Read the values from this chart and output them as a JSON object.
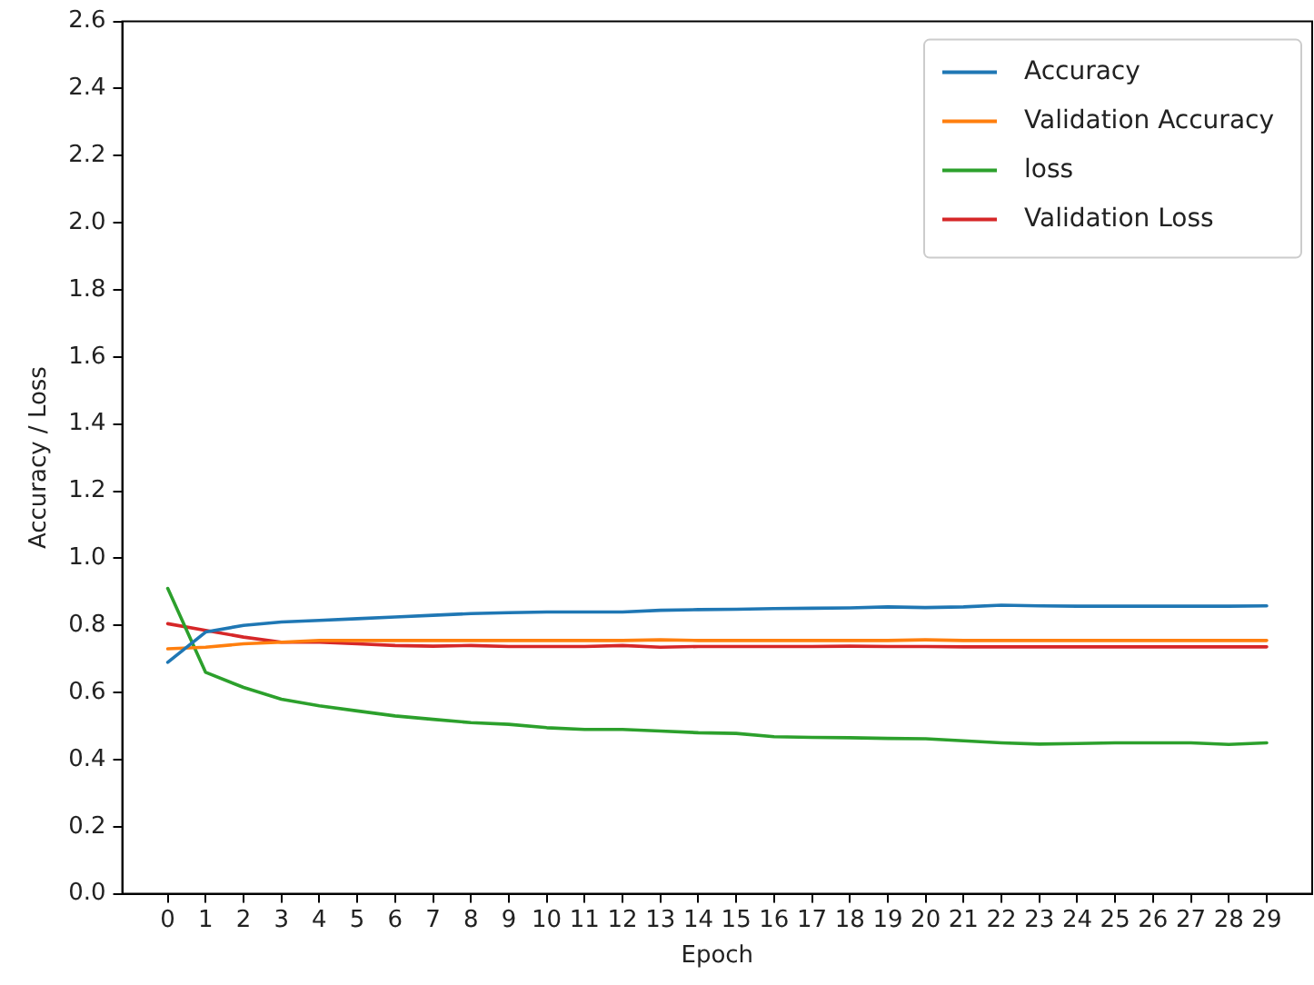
{
  "chart_data": {
    "type": "line",
    "xlabel": "Epoch",
    "ylabel": "Accuracy / Loss",
    "x": [
      0,
      1,
      2,
      3,
      4,
      5,
      6,
      7,
      8,
      9,
      10,
      11,
      12,
      13,
      14,
      15,
      16,
      17,
      18,
      19,
      20,
      21,
      22,
      23,
      24,
      25,
      26,
      27,
      28,
      29
    ],
    "xlim": [
      -1.2,
      30.2
    ],
    "xticks": [
      0,
      1,
      2,
      3,
      4,
      5,
      6,
      7,
      8,
      9,
      10,
      11,
      12,
      13,
      14,
      15,
      16,
      17,
      18,
      19,
      20,
      21,
      22,
      23,
      24,
      25,
      26,
      27,
      28,
      29
    ],
    "ylim": [
      0,
      2.6
    ],
    "yticks": [
      {
        "value": 0,
        "label": "0.0"
      },
      {
        "value": 0.2,
        "label": "0.2"
      },
      {
        "value": 0.4,
        "label": "0.4"
      },
      {
        "value": 0.6,
        "label": "0.6"
      },
      {
        "value": 0.8,
        "label": "0.8"
      },
      {
        "value": 1,
        "label": "1.0"
      },
      {
        "value": 1.2,
        "label": "1.2"
      },
      {
        "value": 1.4,
        "label": "1.4"
      },
      {
        "value": 1.6,
        "label": "1.6"
      },
      {
        "value": 1.8,
        "label": "1.8"
      },
      {
        "value": 2,
        "label": "2.0"
      },
      {
        "value": 2.2,
        "label": "2.2"
      },
      {
        "value": 2.4,
        "label": "2.4"
      },
      {
        "value": 2.6,
        "label": "2.6"
      }
    ],
    "grid": false,
    "legend": "top right",
    "marker": "none",
    "line_style": "solid",
    "series": [
      {
        "name": "Accuracy",
        "color": "#1f77b4",
        "values": [
          0.69,
          0.78,
          0.8,
          0.81,
          0.815,
          0.82,
          0.825,
          0.83,
          0.835,
          0.838,
          0.84,
          0.84,
          0.84,
          0.845,
          0.847,
          0.848,
          0.85,
          0.851,
          0.852,
          0.855,
          0.853,
          0.855,
          0.86,
          0.858,
          0.857,
          0.857,
          0.857,
          0.857,
          0.857,
          0.858
        ]
      },
      {
        "name": "Validation Accuracy",
        "color": "#ff7f0e",
        "values": [
          0.73,
          0.735,
          0.745,
          0.75,
          0.755,
          0.755,
          0.755,
          0.755,
          0.755,
          0.755,
          0.755,
          0.755,
          0.755,
          0.757,
          0.755,
          0.755,
          0.755,
          0.755,
          0.755,
          0.755,
          0.757,
          0.755,
          0.755,
          0.755,
          0.755,
          0.755,
          0.755,
          0.755,
          0.755,
          0.755
        ]
      },
      {
        "name": "loss",
        "color": "#2ca02c",
        "values": [
          0.91,
          0.66,
          0.615,
          0.58,
          0.56,
          0.545,
          0.53,
          0.52,
          0.51,
          0.505,
          0.495,
          0.49,
          0.49,
          0.485,
          0.48,
          0.478,
          0.468,
          0.466,
          0.465,
          0.463,
          0.462,
          0.456,
          0.45,
          0.446,
          0.448,
          0.45,
          0.45,
          0.45,
          0.445,
          0.45
        ]
      },
      {
        "name": "Validation Loss",
        "color": "#d62728",
        "values": [
          0.805,
          0.785,
          0.765,
          0.75,
          0.75,
          0.745,
          0.74,
          0.738,
          0.74,
          0.737,
          0.737,
          0.737,
          0.74,
          0.735,
          0.737,
          0.737,
          0.737,
          0.737,
          0.738,
          0.737,
          0.737,
          0.736,
          0.736,
          0.736,
          0.736,
          0.736,
          0.736,
          0.736,
          0.736,
          0.736
        ]
      }
    ]
  }
}
